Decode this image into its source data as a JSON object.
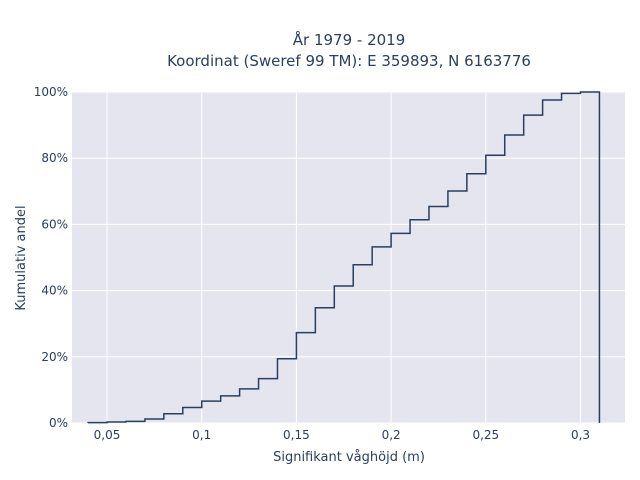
{
  "chart_data": {
    "type": "line",
    "title_line1": "År 1979 - 2019",
    "title_line2": "Koordinat (Sweref 99 TM): E 359893, N 6163776",
    "xlabel": "Signifikant våghöjd (m)",
    "ylabel": "Kumulativ andel",
    "x_ticks": [
      {
        "value": 0.05,
        "label": "0,05"
      },
      {
        "value": 0.1,
        "label": "0,1"
      },
      {
        "value": 0.15,
        "label": "0,15"
      },
      {
        "value": 0.2,
        "label": "0,2"
      },
      {
        "value": 0.25,
        "label": "0,25"
      },
      {
        "value": 0.3,
        "label": "0,3"
      }
    ],
    "y_ticks": [
      {
        "value": 0,
        "label": "0%"
      },
      {
        "value": 20,
        "label": "20%"
      },
      {
        "value": 40,
        "label": "40%"
      },
      {
        "value": 60,
        "label": "60%"
      },
      {
        "value": 80,
        "label": "80%"
      },
      {
        "value": 100,
        "label": "100%"
      }
    ],
    "xlim": [
      0.0315,
      0.3235
    ],
    "ylim": [
      0,
      100
    ],
    "grid": true,
    "series": [
      {
        "line_color": "#2a3f5f",
        "step_edges": [
          0.04,
          0.05,
          0.06,
          0.07,
          0.08,
          0.09,
          0.1,
          0.11,
          0.12,
          0.13,
          0.14,
          0.15,
          0.16,
          0.17,
          0.18,
          0.19,
          0.2,
          0.21,
          0.22,
          0.23,
          0.24,
          0.25,
          0.26,
          0.27,
          0.28,
          0.29,
          0.3,
          0.31
        ],
        "cumulative_percent": [
          0.1,
          0.3,
          0.5,
          1.2,
          2.8,
          4.7,
          6.6,
          8.2,
          10.3,
          13.4,
          19.4,
          27.3,
          34.8,
          41.4,
          47.8,
          53.2,
          57.3,
          61.4,
          65.4,
          70.1,
          75.3,
          80.9,
          87.0,
          93.0,
          97.6,
          99.6,
          100.0
        ]
      }
    ]
  }
}
